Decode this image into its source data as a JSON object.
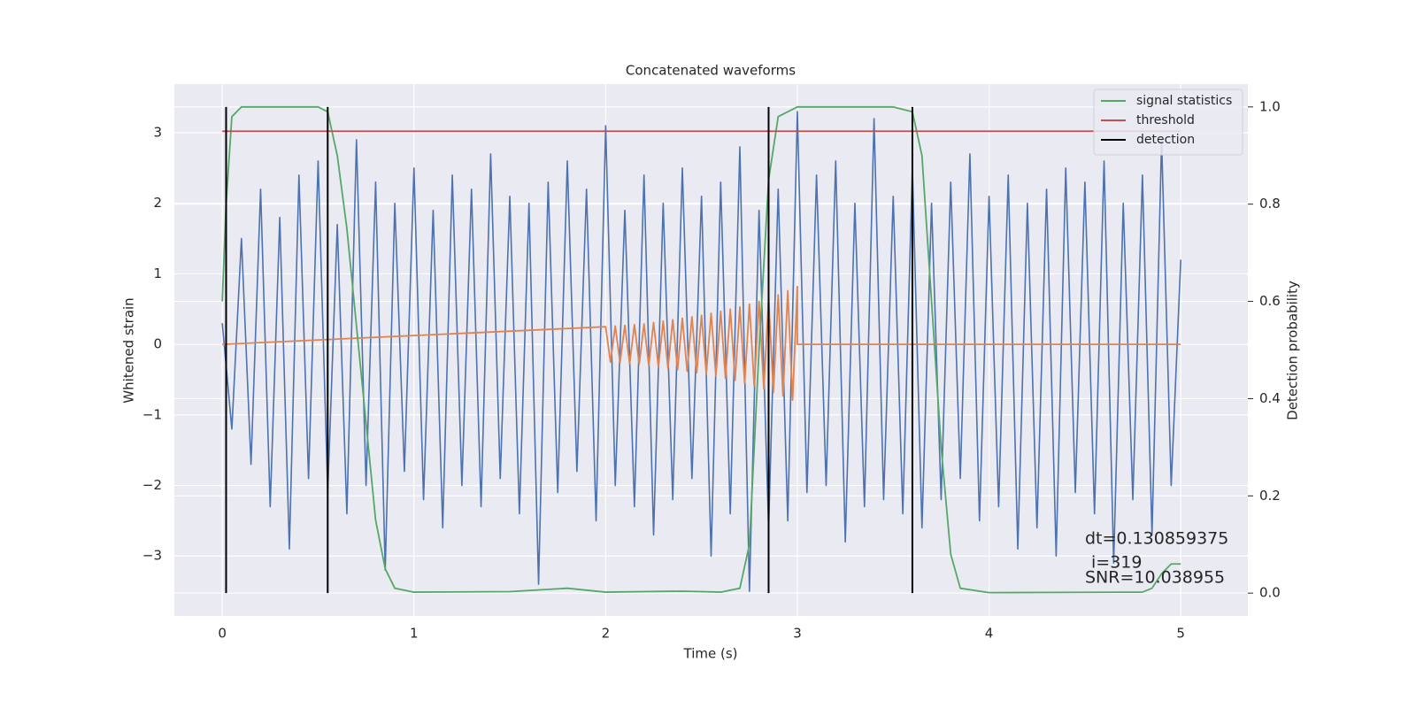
{
  "chart_data": {
    "type": "line",
    "title": "Concatenated waveforms",
    "xlabel": "Time (s)",
    "ylabel": "Whitened strain",
    "y2label": "Detection probability",
    "xlim": [
      -0.25,
      5.35
    ],
    "ylim": [
      -3.85,
      3.69
    ],
    "y2lim": [
      -0.047,
      1.047
    ],
    "xticks": [
      0,
      1,
      2,
      3,
      4,
      5
    ],
    "yticks": [
      {
        "value": -3,
        "label": "−3"
      },
      {
        "value": -2,
        "label": "−2"
      },
      {
        "value": -1,
        "label": "−1"
      },
      0,
      1,
      2,
      3
    ],
    "y2ticks": [
      {
        "value": 0,
        "label": "0.0"
      },
      0.2,
      0.4,
      0.6,
      0.8,
      {
        "value": 1,
        "label": "1.0"
      }
    ],
    "grid": true,
    "legend": "upper right",
    "annotations": [
      "dt=0.130859375",
      "i=319",
      "SNR=10.038955"
    ],
    "series": [
      {
        "color": "#4c72b0",
        "x": [
          0,
          0.05,
          0.1,
          0.15,
          0.2,
          0.25,
          0.3,
          0.35,
          0.4,
          0.45,
          0.5,
          0.55,
          0.6,
          0.65,
          0.7,
          0.75,
          0.8,
          0.85,
          0.9,
          0.95,
          1,
          1.05,
          1.1,
          1.15,
          1.2,
          1.25,
          1.3,
          1.35,
          1.4,
          1.45,
          1.5,
          1.55,
          1.6,
          1.65,
          1.7,
          1.75,
          1.8,
          1.85,
          1.9,
          1.95,
          2,
          2.05,
          2.1,
          2.15,
          2.2,
          2.25,
          2.3,
          2.35,
          2.4,
          2.45,
          2.5,
          2.55,
          2.6,
          2.65,
          2.7,
          2.75,
          2.8,
          2.85,
          2.9,
          2.95,
          3,
          3.05,
          3.1,
          3.15,
          3.2,
          3.25,
          3.3,
          3.35,
          3.4,
          3.45,
          3.5,
          3.55,
          3.6,
          3.65,
          3.7,
          3.75,
          3.8,
          3.85,
          3.9,
          3.95,
          4,
          4.05,
          4.1,
          4.15,
          4.2,
          4.25,
          4.3,
          4.35,
          4.4,
          4.45,
          4.5,
          4.55,
          4.6,
          4.65,
          4.7,
          4.75,
          4.8,
          4.85,
          4.9,
          4.95,
          5
        ],
        "values": [
          0.3,
          -1.2,
          1.5,
          -1.7,
          2.2,
          -2.3,
          1.8,
          -2.9,
          2.4,
          -1.9,
          2.6,
          -2.1,
          1.7,
          -2.4,
          2.9,
          -2.0,
          2.3,
          -3.2,
          2.0,
          -1.8,
          2.5,
          -2.2,
          1.9,
          -2.6,
          2.4,
          -2.0,
          2.2,
          -2.3,
          2.7,
          -1.9,
          2.1,
          -2.4,
          2.0,
          -3.4,
          2.3,
          -2.1,
          2.6,
          -1.8,
          2.2,
          -2.5,
          3.1,
          -2.0,
          1.9,
          -2.3,
          2.4,
          -2.7,
          2.0,
          -2.2,
          2.5,
          -1.9,
          2.1,
          -3.0,
          2.3,
          -2.4,
          2.8,
          -3.5,
          1.9,
          -2.6,
          2.2,
          -2.5,
          3.3,
          -2.1,
          2.4,
          -2.0,
          2.6,
          -2.8,
          2.0,
          -2.3,
          3.2,
          -2.2,
          2.1,
          -2.4,
          2.5,
          -2.6,
          2.0,
          -2.2,
          2.3,
          -1.9,
          2.7,
          -2.5,
          2.1,
          -2.3,
          2.4,
          -2.9,
          2.0,
          -2.6,
          2.2,
          -3.0,
          2.5,
          -2.1,
          2.3,
          -2.4,
          2.6,
          -3.1,
          2.0,
          -2.2,
          2.4,
          -2.7,
          2.9,
          -2.0,
          1.2
        ]
      },
      {
        "color": "#dd8452",
        "x": [
          0,
          2,
          2.025,
          2.05,
          2.075,
          2.1,
          2.125,
          2.15,
          2.175,
          2.2,
          2.225,
          2.25,
          2.275,
          2.3,
          2.325,
          2.35,
          2.375,
          2.4,
          2.425,
          2.45,
          2.475,
          2.5,
          2.525,
          2.55,
          2.575,
          2.6,
          2.625,
          2.65,
          2.675,
          2.7,
          2.725,
          2.75,
          2.775,
          2.8,
          2.825,
          2.85,
          2.875,
          2.9,
          2.925,
          2.95,
          2.975,
          3,
          3,
          5
        ],
        "values": [
          0,
          0.25,
          -0.25,
          0.26,
          -0.26,
          0.27,
          -0.27,
          0.28,
          -0.28,
          0.29,
          -0.3,
          0.31,
          -0.32,
          0.33,
          -0.34,
          0.35,
          -0.36,
          0.37,
          -0.38,
          0.39,
          -0.4,
          0.41,
          -0.42,
          0.44,
          -0.45,
          0.47,
          -0.48,
          0.5,
          -0.51,
          0.53,
          -0.55,
          0.57,
          -0.59,
          0.61,
          -0.63,
          0.65,
          -0.68,
          0.7,
          -0.73,
          0.76,
          -0.79,
          0.82,
          0,
          0
        ]
      },
      {
        "name": "signal statistics",
        "color": "#55a868",
        "axis": "y2",
        "x": [
          0,
          0.02,
          0.05,
          0.1,
          0.5,
          0.55,
          0.6,
          0.65,
          0.7,
          0.75,
          0.8,
          0.85,
          0.9,
          1,
          1.5,
          1.8,
          2,
          2.4,
          2.6,
          2.7,
          2.75,
          2.8,
          2.85,
          2.9,
          3,
          3.5,
          3.6,
          3.65,
          3.7,
          3.75,
          3.8,
          3.85,
          4,
          4.8,
          4.85,
          4.9,
          4.95,
          5
        ],
        "values": [
          0.6,
          0.8,
          0.98,
          1,
          1,
          0.99,
          0.9,
          0.75,
          0.55,
          0.35,
          0.15,
          0.05,
          0.01,
          0.002,
          0.003,
          0.01,
          0.002,
          0.004,
          0.002,
          0.01,
          0.1,
          0.5,
          0.85,
          0.98,
          1,
          1,
          0.99,
          0.9,
          0.6,
          0.3,
          0.08,
          0.01,
          0.001,
          0.002,
          0.01,
          0.04,
          0.06,
          0.06
        ]
      },
      {
        "name": "threshold",
        "color": "#c44e52",
        "axis": "y2",
        "x": [
          0,
          5
        ],
        "values": [
          0.95,
          0.95
        ]
      },
      {
        "name": "detection",
        "color": "#000000",
        "axis": "y2",
        "x": [
          0.02,
          0.55,
          2.85,
          3.6
        ]
      }
    ]
  }
}
